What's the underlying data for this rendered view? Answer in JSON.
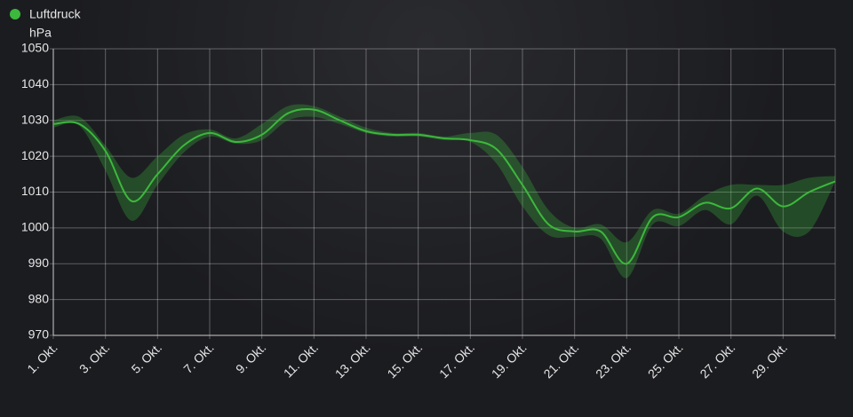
{
  "chart_data": {
    "type": "line",
    "legend": "top-left",
    "ylabel": "hPa",
    "categories": [
      "1. Okt.",
      null,
      "3. Okt.",
      null,
      "5. Okt.",
      null,
      "7. Okt.",
      null,
      "9. Okt.",
      null,
      "11. Okt.",
      null,
      "13. Okt.",
      null,
      "15. Okt.",
      null,
      "17. Okt.",
      null,
      "19. Okt.",
      null,
      "21. Okt.",
      null,
      "23. Okt.",
      null,
      "25. Okt.",
      null,
      "27. Okt.",
      null,
      "29. Okt.",
      null,
      null
    ],
    "series": [
      {
        "name": "Luftdruck",
        "color": "#3cb83c",
        "values": [
          1029,
          1029,
          1021.5,
          1007.5,
          1015,
          1023,
          1026.5,
          1024,
          1026,
          1032,
          1033,
          1030,
          1027,
          1026,
          1026,
          1025,
          1024.5,
          1022,
          1012,
          1001,
          999,
          999,
          990,
          1003,
          1003,
          1007,
          1005.5,
          1011,
          1006,
          1010,
          1013
        ],
        "min": [
          1028,
          1028.5,
          1016,
          1002,
          1012,
          1021,
          1025.5,
          1023.5,
          1024.5,
          1030,
          1031,
          1029,
          1026.5,
          1025.5,
          1025.5,
          1024.5,
          1024,
          1018,
          1006,
          998,
          997.5,
          997,
          986,
          1001,
          1000.5,
          1005,
          1001,
          1009,
          999,
          999,
          1013
        ],
        "max": [
          1030,
          1031,
          1023,
          1014,
          1020,
          1026,
          1027.5,
          1025,
          1029,
          1034,
          1034,
          1031,
          1028,
          1026.5,
          1026.5,
          1025.5,
          1026.5,
          1026,
          1017,
          1005,
          1000,
          1001,
          996,
          1005,
          1004,
          1009,
          1012,
          1012,
          1012,
          1014,
          1014.5
        ]
      }
    ],
    "ylim": [
      970,
      1050
    ],
    "yticks": [
      970,
      980,
      990,
      1000,
      1010,
      1020,
      1030,
      1040,
      1050
    ],
    "grid": true
  }
}
